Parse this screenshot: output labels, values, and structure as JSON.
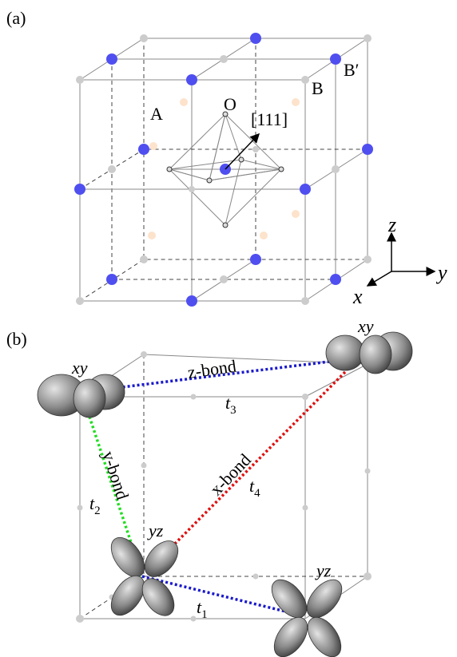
{
  "panel_a": {
    "label": "(a)",
    "site_a": "A",
    "site_o": "O",
    "direction": "[111]",
    "site_b": "B",
    "site_b_prime": "B′",
    "axes": {
      "z": "z",
      "y": "y",
      "x": "x"
    }
  },
  "panel_b": {
    "label": "(b)",
    "orbital_top_left": "xy",
    "orbital_top_right": "xy",
    "orbital_bottom_left": "yz",
    "orbital_bottom_right": "yz",
    "bond_z": "z-bond",
    "bond_y": "y-bond",
    "bond_x": "x-bond",
    "hop_t3": {
      "symbol": "t",
      "subscript": "3"
    },
    "hop_t2": {
      "symbol": "t",
      "subscript": "2"
    },
    "hop_t4": {
      "symbol": "t",
      "subscript": "4"
    },
    "hop_t1": {
      "symbol": "t",
      "subscript": "1"
    }
  }
}
